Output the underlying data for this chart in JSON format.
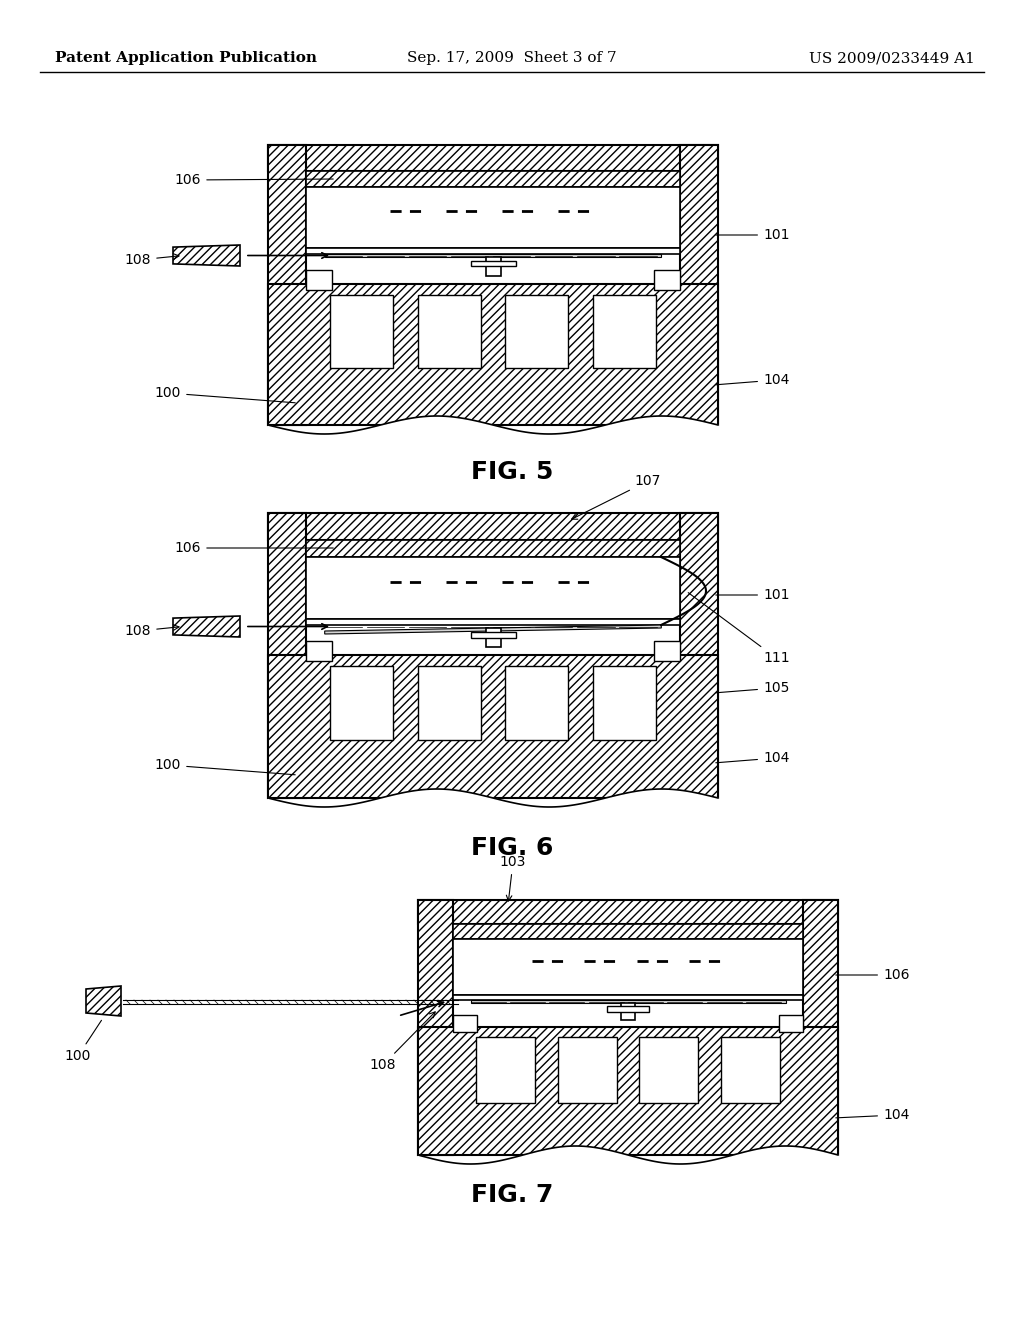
{
  "bg_color": "#ffffff",
  "header_left": "Patent Application Publication",
  "header_center": "Sep. 17, 2009  Sheet 3 of 7",
  "header_right": "US 2009/0233449 A1",
  "fig5_label": "FIG. 5",
  "fig6_label": "FIG. 6",
  "fig7_label": "FIG. 7",
  "annotation_fontsize": 10,
  "fig_label_fontsize": 18,
  "header_fontsize": 11
}
